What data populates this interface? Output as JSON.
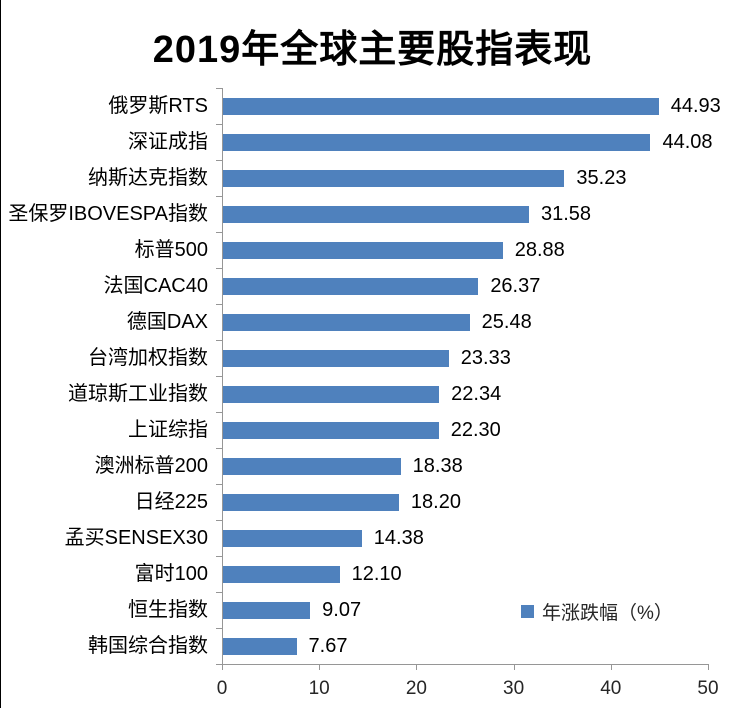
{
  "chart": {
    "title": "2019年全球主要股指表现",
    "legend_label": "年涨跌幅（%）"
  },
  "chart_data": {
    "type": "bar",
    "orientation": "horizontal",
    "title": "2019年全球主要股指表现",
    "categories": [
      "俄罗斯RTS",
      "深证成指",
      "纳斯达克指数",
      "圣保罗IBOVESPA指数",
      "标普500",
      "法国CAC40",
      "德国DAX",
      "台湾加权指数",
      "道琼斯工业指数",
      "上证综指",
      "澳洲标普200",
      "日经225",
      "孟买SENSEX30",
      "富时100",
      "恒生指数",
      "韩国综合指数"
    ],
    "values": [
      44.93,
      44.08,
      35.23,
      31.58,
      28.88,
      26.37,
      25.48,
      23.33,
      22.34,
      22.3,
      18.38,
      18.2,
      14.38,
      12.1,
      9.07,
      7.67
    ],
    "value_labels": [
      "44.93",
      "44.08",
      "35.23",
      "31.58",
      "28.88",
      "26.37",
      "25.48",
      "23.33",
      "22.34",
      "22.30",
      "18.38",
      "18.20",
      "14.38",
      "12.10",
      "9.07",
      "7.67"
    ],
    "legend": [
      "年涨跌幅（%）"
    ],
    "legend_position": "inside-bottom-right",
    "xlabel": "",
    "ylabel": "",
    "xlim": [
      0,
      50
    ],
    "x_ticks": [
      "0",
      "10",
      "20",
      "30",
      "40",
      "50"
    ],
    "x_tick_values": [
      0,
      10,
      20,
      30,
      40,
      50
    ],
    "grid": false,
    "data_labels": true,
    "bar_color": "#4F81BD",
    "axis_color": "#969696",
    "text_color": "#000000"
  }
}
